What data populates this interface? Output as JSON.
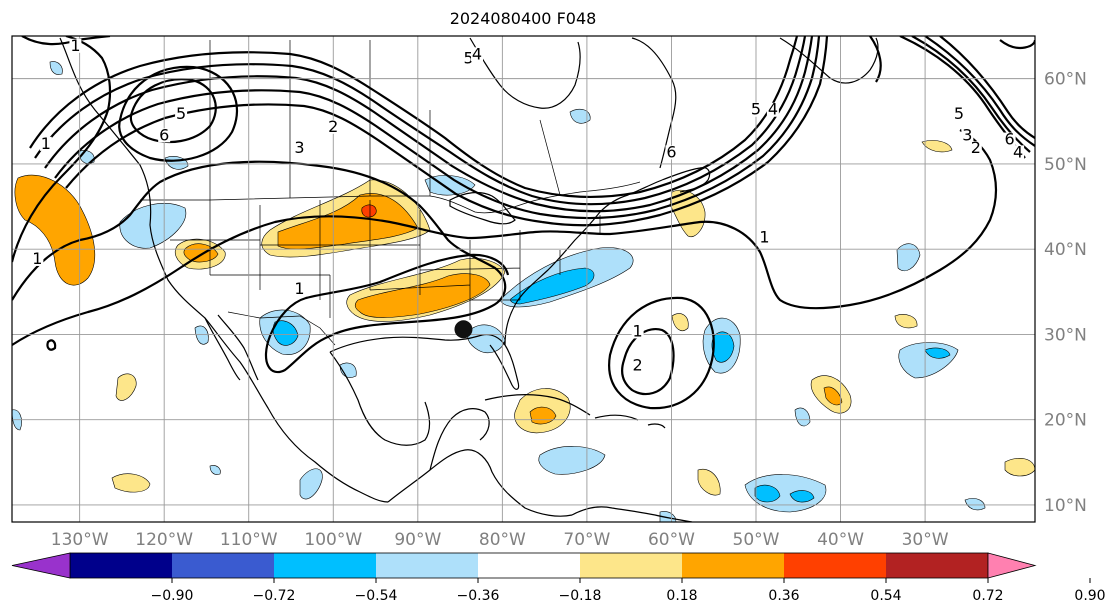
{
  "title": "2024080400 F048",
  "colors": {
    "bins": [
      "#9932cc",
      "#00008b",
      "#3a5bd0",
      "#00bfff",
      "#aee0fa",
      "#ffffff",
      "#fde68a",
      "#ffa500",
      "#ff4000",
      "#b22222",
      "#ff80b0"
    ],
    "contour": "#000000",
    "grid": "#9a9a9a",
    "storm_marker": "#111111"
  },
  "map": {
    "extent": {
      "lon": [
        -138,
        -17
      ],
      "lat": [
        8,
        65
      ]
    },
    "lon_ticks": [
      {
        "value": -130,
        "label": "130°W"
      },
      {
        "value": -120,
        "label": "120°W"
      },
      {
        "value": -110,
        "label": "110°W"
      },
      {
        "value": -100,
        "label": "100°W"
      },
      {
        "value": -90,
        "label": "90°W"
      },
      {
        "value": -80,
        "label": "80°W"
      },
      {
        "value": -70,
        "label": "70°W"
      },
      {
        "value": -60,
        "label": "60°W"
      },
      {
        "value": -50,
        "label": "50°W"
      },
      {
        "value": -40,
        "label": "40°W"
      },
      {
        "value": -30,
        "label": "30°W"
      }
    ],
    "lat_ticks": [
      {
        "value": 10,
        "label": "10°N"
      },
      {
        "value": 20,
        "label": "20°N"
      },
      {
        "value": 30,
        "label": "30°N"
      },
      {
        "value": 40,
        "label": "40°N"
      },
      {
        "value": 50,
        "label": "50°N"
      },
      {
        "value": 60,
        "label": "60°N"
      }
    ],
    "storm_marker": {
      "lon": -84.6,
      "lat": 30.6
    },
    "contour_labels": [
      {
        "text": "1",
        "lon": -130.5,
        "lat": 63.5
      },
      {
        "text": "1",
        "lon": -134,
        "lat": 52
      },
      {
        "text": "5",
        "lon": -118,
        "lat": 55.5
      },
      {
        "text": "6",
        "lon": -120,
        "lat": 53
      },
      {
        "text": "3",
        "lon": -104,
        "lat": 51.5
      },
      {
        "text": "2",
        "lon": -100,
        "lat": 54
      },
      {
        "text": "5",
        "lon": -84,
        "lat": 62
      },
      {
        "text": "4",
        "lon": -83,
        "lat": 62.5
      },
      {
        "text": "5",
        "lon": -50,
        "lat": 56
      },
      {
        "text": "4",
        "lon": -48,
        "lat": 56
      },
      {
        "text": "6",
        "lon": -60,
        "lat": 51
      },
      {
        "text": "1",
        "lon": -135,
        "lat": 38.5
      },
      {
        "text": "1",
        "lon": -104,
        "lat": 35
      },
      {
        "text": "1",
        "lon": -49,
        "lat": 41
      },
      {
        "text": "1",
        "lon": -64,
        "lat": 30
      },
      {
        "text": "2",
        "lon": -64,
        "lat": 26
      },
      {
        "text": "5",
        "lon": -26,
        "lat": 55.5
      },
      {
        "text": "3",
        "lon": -25,
        "lat": 53
      },
      {
        "text": "2",
        "lon": -24,
        "lat": 51.5
      },
      {
        "text": "6",
        "lon": -20,
        "lat": 52.5
      },
      {
        "text": "4",
        "lon": -19,
        "lat": 51
      }
    ]
  },
  "colorbar": {
    "levels": [
      "−0.90",
      "−0.72",
      "−0.54",
      "−0.36",
      "−0.18",
      "0.18",
      "0.36",
      "0.54",
      "0.72",
      "0.90"
    ]
  }
}
